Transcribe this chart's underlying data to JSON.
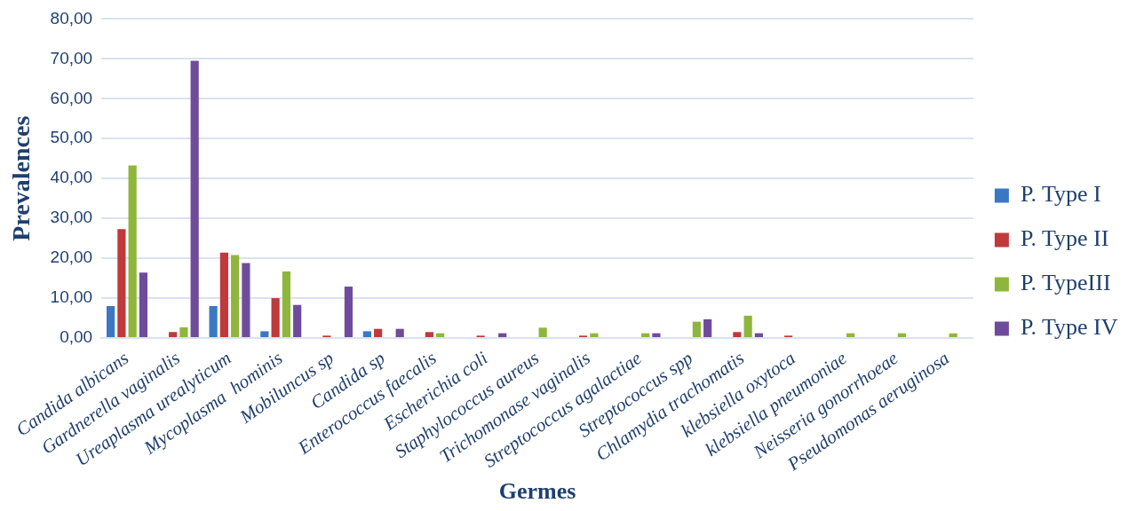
{
  "chart_data": {
    "type": "bar",
    "xlabel": "Germes",
    "ylabel": "Prevalences",
    "categories": [
      "Candida albicans",
      "Gardnerella vaginalis",
      "Ureaplasma urealyticum",
      "Mycoplasma  hominis",
      "Mobiluncus sp",
      "Candida sp",
      "Enterococcus faecalis",
      "Escherichia coli",
      "Staphylococcus aureus",
      "Trichomonase vaginalis",
      "Streptococcus agalactiae",
      "Streptococcus spp",
      "Chlamydia trachomatis",
      "klebsiella oxytoca",
      "klebsiella pneumoniae",
      "Neisseria gonorrhoeae",
      "Pseudomonas aeruginosa"
    ],
    "series": [
      {
        "name": "P. Type I",
        "color": "#3a78c3",
        "values": [
          8,
          0,
          8,
          1.7,
          0,
          1.7,
          0,
          0,
          0,
          0,
          0,
          0,
          0,
          0,
          0,
          0,
          0
        ]
      },
      {
        "name": "P. Type II",
        "color": "#c0393b",
        "values": [
          27.3,
          1.5,
          21.4,
          10,
          0.6,
          2.3,
          1.5,
          0.6,
          0,
          0.6,
          0,
          0,
          1.5,
          0.6,
          0,
          0,
          0
        ]
      },
      {
        "name": "P. TypeIII",
        "color": "#8fb63c",
        "values": [
          43.3,
          2.7,
          20.8,
          16.7,
          0,
          0,
          1.2,
          0,
          2.6,
          1.2,
          1.2,
          4.1,
          5.6,
          0,
          1.2,
          1.2,
          1.2
        ]
      },
      {
        "name": "P. Type IV",
        "color": "#6f4c9b",
        "values": [
          16.4,
          69.5,
          18.8,
          8.3,
          12.9,
          2.3,
          0,
          1.2,
          0,
          0,
          1.2,
          4.7,
          1.2,
          0,
          0,
          0,
          0
        ]
      }
    ],
    "ylim": [
      0,
      80
    ],
    "yticks": [
      {
        "value": 0,
        "label": "0,00"
      },
      {
        "value": 10,
        "label": "10,00"
      },
      {
        "value": 20,
        "label": "20,00"
      },
      {
        "value": 30,
        "label": "30,00"
      },
      {
        "value": 40,
        "label": "40,00"
      },
      {
        "value": 50,
        "label": "50,00"
      },
      {
        "value": 60,
        "label": "60,00"
      },
      {
        "value": 70,
        "label": "70,00"
      },
      {
        "value": 80,
        "label": "80,00"
      }
    ],
    "grid": "y",
    "legend": "right"
  }
}
